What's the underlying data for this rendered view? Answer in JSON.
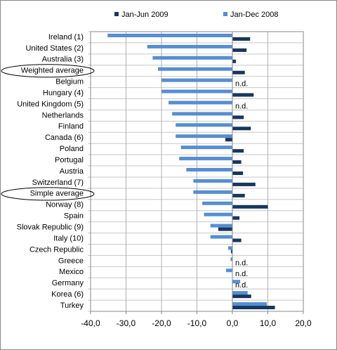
{
  "chart_data": {
    "type": "hbar",
    "categories": [
      "Ireland (1)",
      "United States (2)",
      "Australia (3)",
      "Weighted average",
      "Belgium",
      "Hungary (4)",
      "United Kingdom (5)",
      "Netherlands",
      "Finland",
      "Canada (6)",
      "Poland",
      "Portugal",
      "Austria",
      "Switzerland (7)",
      "Simple average",
      "Norway (8)",
      "Spain",
      "Slovak Republic (9)",
      "Italy (10)",
      "Czech Republic",
      "Greece",
      "Mexico",
      "Germany",
      "Korea (6)",
      "Turkey"
    ],
    "highlighted_categories": [
      3,
      14
    ],
    "series": [
      {
        "name": "Jan-Jun 2009",
        "color": "#17375e",
        "values": [
          5.0,
          4.0,
          1.0,
          3.5,
          null,
          6.0,
          null,
          3.2,
          5.2,
          -2.0,
          3.2,
          2.5,
          3.0,
          6.5,
          3.5,
          10.0,
          2.0,
          -4.0,
          2.5,
          -0.4,
          null,
          null,
          null,
          5.3,
          12.0
        ],
        "value_labels": [
          null,
          null,
          null,
          null,
          "n.d.",
          null,
          "n.d.",
          null,
          null,
          null,
          null,
          null,
          null,
          null,
          null,
          null,
          null,
          null,
          null,
          null,
          "n.d.",
          "n.d.",
          "n.d.",
          null,
          null
        ]
      },
      {
        "name": "Jan-Dec 2008",
        "color": "#558ed5",
        "values": [
          -35.2,
          -24.0,
          -22.5,
          -21.0,
          -20.0,
          -20.0,
          -18.0,
          -17.0,
          -16.0,
          -16.0,
          -14.5,
          -15.0,
          -13.0,
          -11.0,
          -11.0,
          -8.5,
          -8.0,
          -6.2,
          -6.2,
          -1.2,
          -0.5,
          -1.8,
          2.2,
          4.3,
          9.7
        ]
      }
    ],
    "xlim": [
      -40,
      20
    ],
    "xticks": [
      {
        "value": -40,
        "label": "-40,0"
      },
      {
        "value": -30,
        "label": "-30,0"
      },
      {
        "value": -20,
        "label": "-20,0"
      },
      {
        "value": -10,
        "label": "-10,0"
      },
      {
        "value": 0,
        "label": "0,0"
      },
      {
        "value": 10,
        "label": "10,0"
      },
      {
        "value": 20,
        "label": "20,0"
      }
    ],
    "grid": true,
    "legend": "top"
  }
}
